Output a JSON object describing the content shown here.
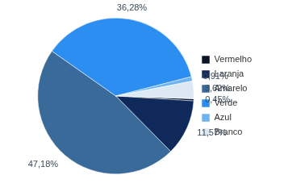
{
  "chart_data": {
    "type": "pie",
    "categories": [
      "Vermelho",
      "Laranja",
      "Amarelo",
      "Verde",
      "Azul",
      "Branco"
    ],
    "values": [
      0.45,
      11.57,
      47.18,
      36.28,
      0.91,
      3.62
    ],
    "value_labels": [
      "0,45%",
      "11,57%",
      "47,18%",
      "36,28%",
      "0,91%",
      "3,62%"
    ],
    "colors": [
      "#0a1628",
      "#0f2a5a",
      "#3a6a9a",
      "#2b8ef0",
      "#6cb3f0",
      "#dde8f5"
    ],
    "legend": "right",
    "data_labels": true
  }
}
